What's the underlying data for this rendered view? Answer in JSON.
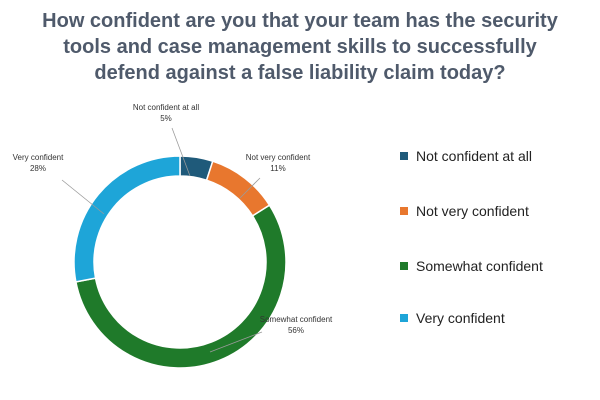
{
  "chart_data": {
    "type": "pie",
    "donut": true,
    "title_lines": [
      "How confident are you that your team has the security",
      "tools and case management skills to successfully",
      "defend against a false liability claim today?"
    ],
    "slices": [
      {
        "label": "Not confident at all",
        "value": 5,
        "value_label": "5%",
        "color": "#1f5a7a"
      },
      {
        "label": "Not very confident",
        "value": 11,
        "value_label": "11%",
        "color": "#e8772e"
      },
      {
        "label": "Somewhat confident",
        "value": 56,
        "value_label": "56%",
        "color": "#1f7a2a"
      },
      {
        "label": "Very confident",
        "value": 28,
        "value_label": "28%",
        "color": "#1ea5d8"
      }
    ],
    "legend_position": "right"
  }
}
